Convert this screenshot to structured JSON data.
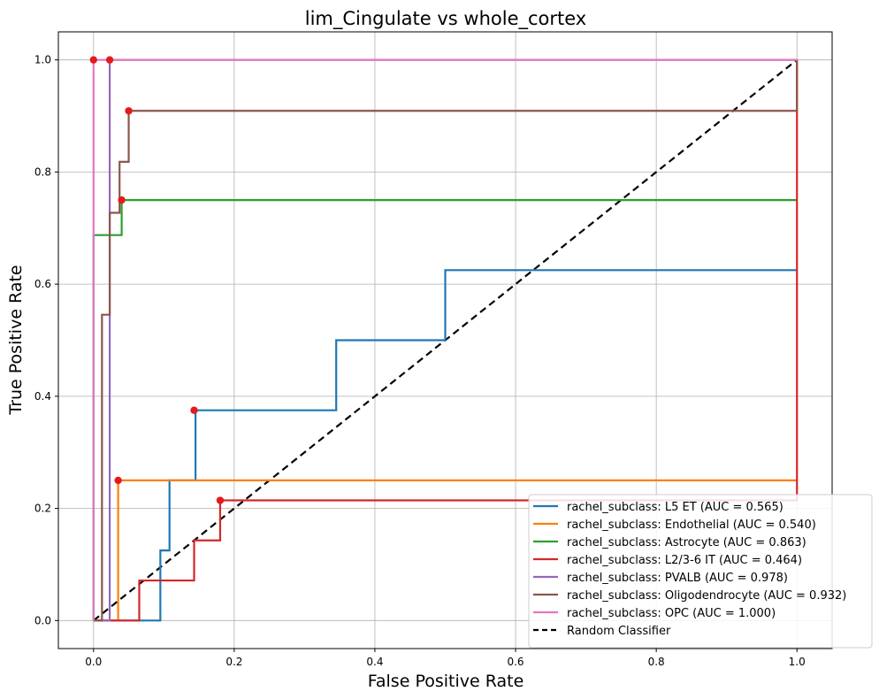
{
  "chart_data": {
    "type": "line",
    "title": "lim_Cingulate vs whole_cortex",
    "xlabel": "False Positive Rate",
    "ylabel": "True Positive Rate",
    "xlim": [
      -0.05,
      1.05
    ],
    "ylim": [
      -0.05,
      1.05
    ],
    "x_ticks": [
      "0.0",
      "0.2",
      "0.4",
      "0.6",
      "0.8",
      "1.0"
    ],
    "y_ticks": [
      "0.0",
      "0.2",
      "0.4",
      "0.6",
      "0.8",
      "1.0"
    ],
    "grid": true,
    "legend_position": "lower-right",
    "marker_color": "#e41a1c",
    "series": [
      {
        "name": "rachel_subclass: L5 ET (AUC = 0.565)",
        "color": "#1f77b4",
        "x": [
          0,
          0.095,
          0.095,
          0.108,
          0.108,
          0.145,
          0.145,
          0.345,
          0.345,
          0.5,
          0.5,
          1.0
        ],
        "y": [
          0,
          0,
          0.125,
          0.125,
          0.25,
          0.25,
          0.375,
          0.375,
          0.5,
          0.5,
          0.625,
          0.625
        ],
        "marker": [
          0.143,
          0.375
        ]
      },
      {
        "name": "rachel_subclass: Endothelial (AUC = 0.540)",
        "color": "#ff7f0e",
        "x": [
          0,
          0.035,
          0.035,
          1.0
        ],
        "y": [
          0,
          0,
          0.25,
          0.25
        ],
        "marker": [
          0.035,
          0.25
        ]
      },
      {
        "name": "rachel_subclass: Astrocyte (AUC = 0.863)",
        "color": "#2ca02c",
        "x": [
          0,
          0,
          0.04,
          0.04,
          1.0
        ],
        "y": [
          0,
          0.6875,
          0.6875,
          0.75,
          0.75
        ],
        "marker": [
          0.04,
          0.75
        ]
      },
      {
        "name": "rachel_subclass: L2/3-6 IT (AUC = 0.464)",
        "color": "#d62728",
        "x": [
          0,
          0.065,
          0.065,
          0.143,
          0.143,
          0.18,
          0.18,
          1.0,
          1.0
        ],
        "y": [
          0,
          0,
          0.0714,
          0.0714,
          0.1429,
          0.1429,
          0.2143,
          0.2143,
          1.0
        ],
        "marker": [
          0.18,
          0.2143
        ]
      },
      {
        "name": "rachel_subclass: PVALB (AUC = 0.978)",
        "color": "#9467bd",
        "x": [
          0,
          0.023,
          0.023,
          1.0
        ],
        "y": [
          0,
          0,
          1.0,
          1.0
        ],
        "marker": [
          0.023,
          1.0
        ]
      },
      {
        "name": "rachel_subclass: Oligodendrocyte (AUC = 0.932)",
        "color": "#8c564b",
        "x": [
          0,
          0.012,
          0.012,
          0.023,
          0.023,
          0.037,
          0.037,
          0.05,
          0.05,
          1.0,
          1.0
        ],
        "y": [
          0,
          0,
          0.5455,
          0.5455,
          0.7273,
          0.7273,
          0.8182,
          0.8182,
          0.9091,
          0.9091,
          1.0
        ],
        "marker": [
          0.05,
          0.9091
        ]
      },
      {
        "name": "rachel_subclass: OPC (AUC = 1.000)",
        "color": "#e377c2",
        "x": [
          0,
          0,
          1.0
        ],
        "y": [
          0,
          1.0,
          1.0
        ],
        "marker": [
          0,
          1.0
        ]
      }
    ],
    "reference_line": {
      "name": "Random Classifier",
      "color": "#000000",
      "style": "dashed",
      "x": [
        0,
        1
      ],
      "y": [
        0,
        1
      ]
    }
  }
}
